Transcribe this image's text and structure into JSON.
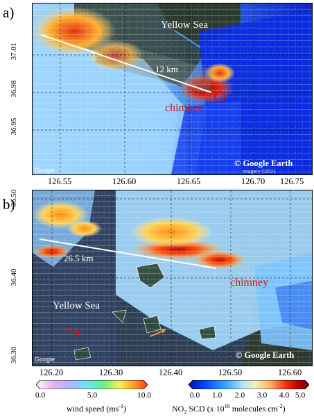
{
  "panels": [
    {
      "letter": "a)",
      "y_ticks": [
        "37.01",
        "36.98",
        "36.95"
      ],
      "x_ticks": [
        "126.55",
        "126.60",
        "126.65",
        "126.70",
        "126.75"
      ],
      "distance_label": "12 km",
      "sea_label": "Yellow Sea",
      "source_label": "chimney",
      "credit": "© Google Earth",
      "imagery": "Imagery ©2021",
      "logo": "Google"
    },
    {
      "letter": "b)",
      "y_ticks": [
        "36.50",
        "36.40",
        "36.30"
      ],
      "x_ticks": [
        "126.20",
        "126.30",
        "126.40",
        "126.50",
        "126.60"
      ],
      "distance_label": "26.5 km",
      "sea_label": "Yellow Sea",
      "source_label": "chimney",
      "credit": "© Google Earth",
      "logo": "Google"
    }
  ],
  "wind_colorbar": {
    "ticks": [
      "0.0",
      "5.0",
      "10.0"
    ],
    "label_main": "wind speed (ms",
    "label_sup": "-1",
    "label_end": ")",
    "colors": [
      "#ffffff",
      "#e9b0f0",
      "#b0b5ff",
      "#70e0ff",
      "#60f08a",
      "#f6f05a",
      "#ff9a28",
      "#ff3a1a"
    ]
  },
  "no2_colorbar": {
    "ticks": [
      "0.0",
      "1.0",
      "2.0",
      "3.0",
      "4.0",
      "5.0"
    ],
    "label_pre": "NO",
    "label_sub": "2",
    "label_mid": " SCD (x 10",
    "label_sup": "16",
    "label_mid2": " molecules cm",
    "label_sup2": "-2",
    "label_end": ")",
    "colors": [
      "#0010a0",
      "#0040ff",
      "#30a0ff",
      "#b0e4ff",
      "#f0f0c0",
      "#ffb060",
      "#ff3010",
      "#b00000",
      "#700000"
    ]
  },
  "colors": {
    "plume_hot": "#b01010",
    "plume_warm": "#ff7a00",
    "low_blue": "#0a2bd8",
    "pale_blue": "#b9e2ff",
    "land_dark": "#2c3a2f",
    "sea_dark": "#2c3f55",
    "marker_red": "#d0141a"
  }
}
